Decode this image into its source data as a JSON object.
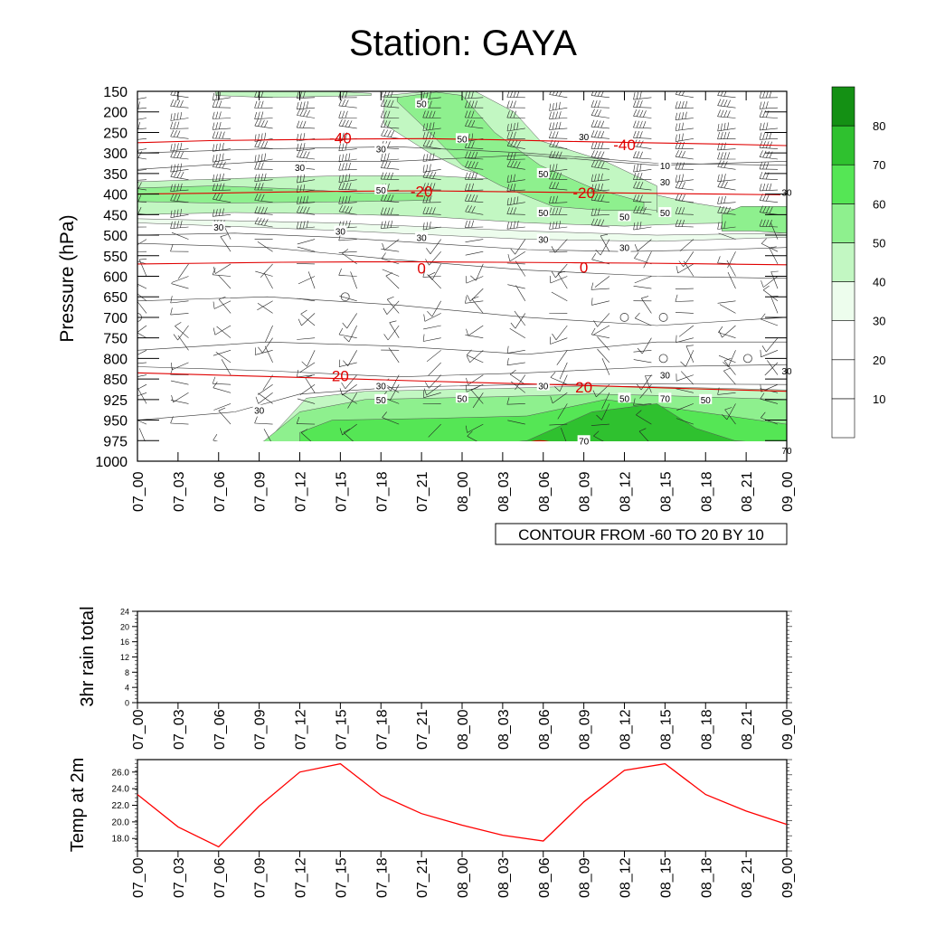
{
  "title": "Station: GAYA",
  "chart_data": [
    {
      "type": "heatmap",
      "title": "",
      "xlabel": "",
      "ylabel": "Pressure (hPa)",
      "x_ticks": [
        "07_00",
        "07_03",
        "07_06",
        "07_09",
        "07_12",
        "07_15",
        "07_18",
        "07_21",
        "08_00",
        "08_03",
        "08_06",
        "08_09",
        "08_12",
        "08_15",
        "08_18",
        "08_21",
        "09_00"
      ],
      "y_levels": [
        150,
        200,
        250,
        300,
        350,
        400,
        450,
        500,
        550,
        600,
        650,
        700,
        750,
        800,
        850,
        925,
        950,
        975,
        1000
      ],
      "fill_variable_levels": [
        10,
        20,
        30,
        40,
        50,
        60,
        70,
        80
      ],
      "fill_colors": [
        "#ffffff",
        "#ffffff",
        "#edfded",
        "#c2f7c2",
        "#8ef08e",
        "#55e655",
        "#2fc12f",
        "#149014"
      ],
      "fill_contour_labels": [
        {
          "text": "50",
          "x": "07_21",
          "y": 180
        },
        {
          "text": "50",
          "x": "08_00",
          "y": 265
        },
        {
          "text": "30",
          "x": "07_18",
          "y": 290
        },
        {
          "text": "30",
          "x": "08_09",
          "y": 260
        },
        {
          "text": "30",
          "x": "07_12",
          "y": 335
        },
        {
          "text": "10",
          "x": "08_15",
          "y": 330
        },
        {
          "text": "50",
          "x": "08_06",
          "y": 350
        },
        {
          "text": "30",
          "x": "08_15",
          "y": 370
        },
        {
          "text": "30",
          "x": "09_00",
          "y": 395
        },
        {
          "text": "50",
          "x": "07_18",
          "y": 390
        },
        {
          "text": "50",
          "x": "08_06",
          "y": 445
        },
        {
          "text": "50",
          "x": "08_12",
          "y": 455
        },
        {
          "text": "50",
          "x": "08_15",
          "y": 445
        },
        {
          "text": "30",
          "x": "07_06",
          "y": 480
        },
        {
          "text": "30",
          "x": "07_15",
          "y": 490
        },
        {
          "text": "30",
          "x": "07_21",
          "y": 505
        },
        {
          "text": "30",
          "x": "08_06",
          "y": 510
        },
        {
          "text": "30",
          "x": "08_12",
          "y": 530
        },
        {
          "text": "30",
          "x": "08_15",
          "y": 840
        },
        {
          "text": "30",
          "x": "09_00",
          "y": 830
        },
        {
          "text": "30",
          "x": "07_18",
          "y": 875
        },
        {
          "text": "30",
          "x": "08_06",
          "y": 875
        },
        {
          "text": "30",
          "x": "07_09",
          "y": 938
        },
        {
          "text": "50",
          "x": "07_18",
          "y": 925
        },
        {
          "text": "50",
          "x": "08_00",
          "y": 920
        },
        {
          "text": "50",
          "x": "08_12",
          "y": 920
        },
        {
          "text": "70",
          "x": "08_15",
          "y": 920
        },
        {
          "text": "50",
          "x": "08_18",
          "y": 925
        },
        {
          "text": "70",
          "x": "08_09",
          "y": 975
        },
        {
          "text": "70",
          "x": "09_00",
          "y": 987
        }
      ],
      "temperature_contours": [
        {
          "value": -40,
          "label": "-40",
          "y_levels": [
            275,
            270,
            268,
            266,
            265,
            268,
            272,
            275,
            278,
            282
          ]
        },
        {
          "value": -20,
          "label": "-20",
          "y_levels": [
            400,
            398,
            395,
            393,
            392,
            394,
            396,
            398,
            400,
            402
          ]
        },
        {
          "value": 0,
          "label": "0",
          "y_levels": [
            570,
            568,
            566,
            565,
            565,
            566,
            567,
            568,
            570,
            572
          ]
        },
        {
          "value": 20,
          "label": "20",
          "y_levels": [
            835,
            840,
            845,
            850,
            858,
            865,
            872,
            880,
            888,
            895
          ]
        }
      ],
      "temperature_contour_labels": [
        {
          "text": "-40",
          "x": "07_15",
          "y": 263
        },
        {
          "text": "-40",
          "x": "08_12",
          "y": 280
        },
        {
          "text": "-20",
          "x": "07_21",
          "y": 393
        },
        {
          "text": "-20",
          "x": "08_09",
          "y": 396
        },
        {
          "text": "0",
          "x": "07_21",
          "y": 580
        },
        {
          "text": "0",
          "x": "08_09",
          "y": 578
        },
        {
          "text": "20",
          "x": "07_15",
          "y": 842
        },
        {
          "text": "20",
          "x": "08_09",
          "y": 880
        }
      ],
      "colorbar_ticks": [
        "10",
        "20",
        "30",
        "40",
        "50",
        "60",
        "70",
        "80"
      ],
      "legend_text": "CONTOUR FROM -60 TO 20 BY 10",
      "legend_position": "bottom-right"
    },
    {
      "type": "bar",
      "title": "",
      "ylabel": "3hr rain total",
      "categories": [
        "07_00",
        "07_03",
        "07_06",
        "07_09",
        "07_12",
        "07_15",
        "07_18",
        "07_21",
        "08_00",
        "08_03",
        "08_06",
        "08_09",
        "08_12",
        "08_15",
        "08_18",
        "08_21",
        "09_00"
      ],
      "values": [
        0,
        0,
        0,
        0,
        0,
        0,
        0,
        0,
        0,
        0,
        0,
        0,
        0,
        0,
        0,
        0,
        0
      ],
      "ylim": [
        0,
        24
      ],
      "y_ticks": [
        "0",
        "4",
        "8",
        "12",
        "16",
        "20",
        "24"
      ]
    },
    {
      "type": "line",
      "title": "",
      "ylabel": "Temp at 2m",
      "categories": [
        "07_00",
        "07_03",
        "07_06",
        "07_09",
        "07_12",
        "07_15",
        "07_18",
        "07_21",
        "08_00",
        "08_03",
        "08_06",
        "08_09",
        "08_12",
        "08_15",
        "08_18",
        "08_21",
        "09_00"
      ],
      "series": [
        {
          "values": [
            23.3,
            19.4,
            17.0,
            21.9,
            26.0,
            27.0,
            23.2,
            21.0,
            19.6,
            18.4,
            17.7,
            22.4,
            26.2,
            27.0,
            23.3,
            21.3,
            19.7
          ],
          "color": "#ff0000"
        }
      ],
      "ylim": [
        16.5,
        27.5
      ],
      "y_ticks": [
        "18.0",
        "20.0",
        "22.0",
        "24.0",
        "26.0"
      ]
    }
  ]
}
